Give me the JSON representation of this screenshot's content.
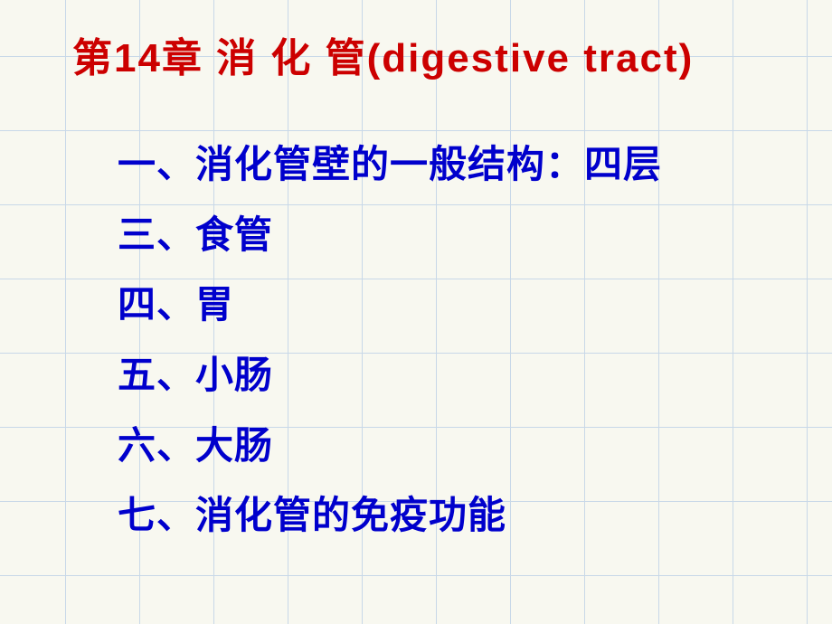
{
  "slide": {
    "title": "第14章  消 化 管(digestive tract)",
    "items": [
      "一、消化管壁的一般结构：四层",
      "三、食管",
      "四、胃",
      "五、小肠",
      "六、大肠",
      "七、消化管的免疫功能"
    ],
    "styling": {
      "background_color": "#f8f8f0",
      "grid_color": "#c8d8e8",
      "grid_size": 82,
      "title_color": "#cc0000",
      "title_fontsize": 44,
      "item_color": "#0000cc",
      "item_fontsize": 42,
      "title_font": "SimHei",
      "item_font": "SimSun"
    }
  }
}
